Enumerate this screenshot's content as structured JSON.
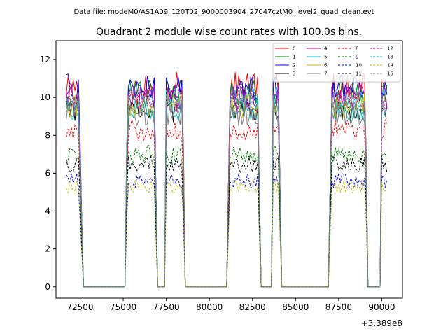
{
  "suptitle": "Data file: modeM0/AS1A09_120T02_9000003904_27047cztM0_level2_quad_clean.evt",
  "chart_data": {
    "type": "line",
    "title": "Quadrant 2 module wise count rates with 100.0s bins.",
    "xlabel": "",
    "ylabel": "",
    "x_offset_label": "+3.389e8",
    "xlim": [
      71100,
      91200
    ],
    "ylim": [
      -0.6,
      13.0
    ],
    "x_ticks": [
      72500,
      75000,
      77500,
      80000,
      82500,
      85000,
      87500,
      90000
    ],
    "x_tick_labels": [
      "72500",
      "75000",
      "77500",
      "80000",
      "82500",
      "85000",
      "87500",
      "90000"
    ],
    "y_ticks": [
      0,
      2,
      4,
      6,
      8,
      10,
      12
    ],
    "y_tick_labels": [
      "0",
      "2",
      "4",
      "6",
      "8",
      "10",
      "12"
    ],
    "legend_position": "top-right",
    "legend_columns": 4,
    "grid": false,
    "segments": [
      {
        "start": 71700,
        "end": 72700,
        "ramp_in": 0,
        "ramp_out": 300
      },
      {
        "start": 75100,
        "end": 77000,
        "ramp_in": 150,
        "ramp_out": 200
      },
      {
        "start": 77400,
        "end": 78600,
        "ramp_in": 100,
        "ramp_out": 150
      },
      {
        "start": 81000,
        "end": 83000,
        "ramp_in": 200,
        "ramp_out": 200
      },
      {
        "start": 83600,
        "end": 84200,
        "ramp_in": 100,
        "ramp_out": 200
      },
      {
        "start": 86900,
        "end": 89200,
        "ramp_in": 200,
        "ramp_out": 150
      },
      {
        "start": 89900,
        "end": 90300,
        "ramp_in": 100,
        "ramp_out": 0
      }
    ],
    "series": [
      {
        "name": "0",
        "level": 10.6,
        "color": "#ff0000",
        "dashed": false
      },
      {
        "name": "1",
        "level": 10.2,
        "color": "#008000",
        "dashed": false
      },
      {
        "name": "2",
        "level": 10.5,
        "color": "#0000ff",
        "dashed": false
      },
      {
        "name": "3",
        "level": 9.3,
        "color": "#000000",
        "dashed": false
      },
      {
        "name": "4",
        "level": 10.0,
        "color": "#bf00bf",
        "dashed": false
      },
      {
        "name": "5",
        "level": 9.4,
        "color": "#00bfbf",
        "dashed": false
      },
      {
        "name": "6",
        "level": 9.6,
        "color": "#bfbf00",
        "dashed": false
      },
      {
        "name": "7",
        "level": 9.1,
        "color": "#808080",
        "dashed": false
      },
      {
        "name": "8",
        "level": 8.3,
        "color": "#ff0000",
        "dashed": true
      },
      {
        "name": "9",
        "level": 7.0,
        "color": "#008000",
        "dashed": true
      },
      {
        "name": "10",
        "level": 5.6,
        "color": "#0000ff",
        "dashed": true
      },
      {
        "name": "11",
        "level": 6.5,
        "color": "#000000",
        "dashed": true
      },
      {
        "name": "12",
        "level": 9.8,
        "color": "#bf00bf",
        "dashed": true
      },
      {
        "name": "13",
        "level": 9.9,
        "color": "#00bfbf",
        "dashed": true
      },
      {
        "name": "14",
        "level": 5.3,
        "color": "#bfbf00",
        "dashed": true
      },
      {
        "name": "15",
        "level": 9.6,
        "color": "#808080",
        "dashed": true
      }
    ],
    "x_step": 100
  }
}
